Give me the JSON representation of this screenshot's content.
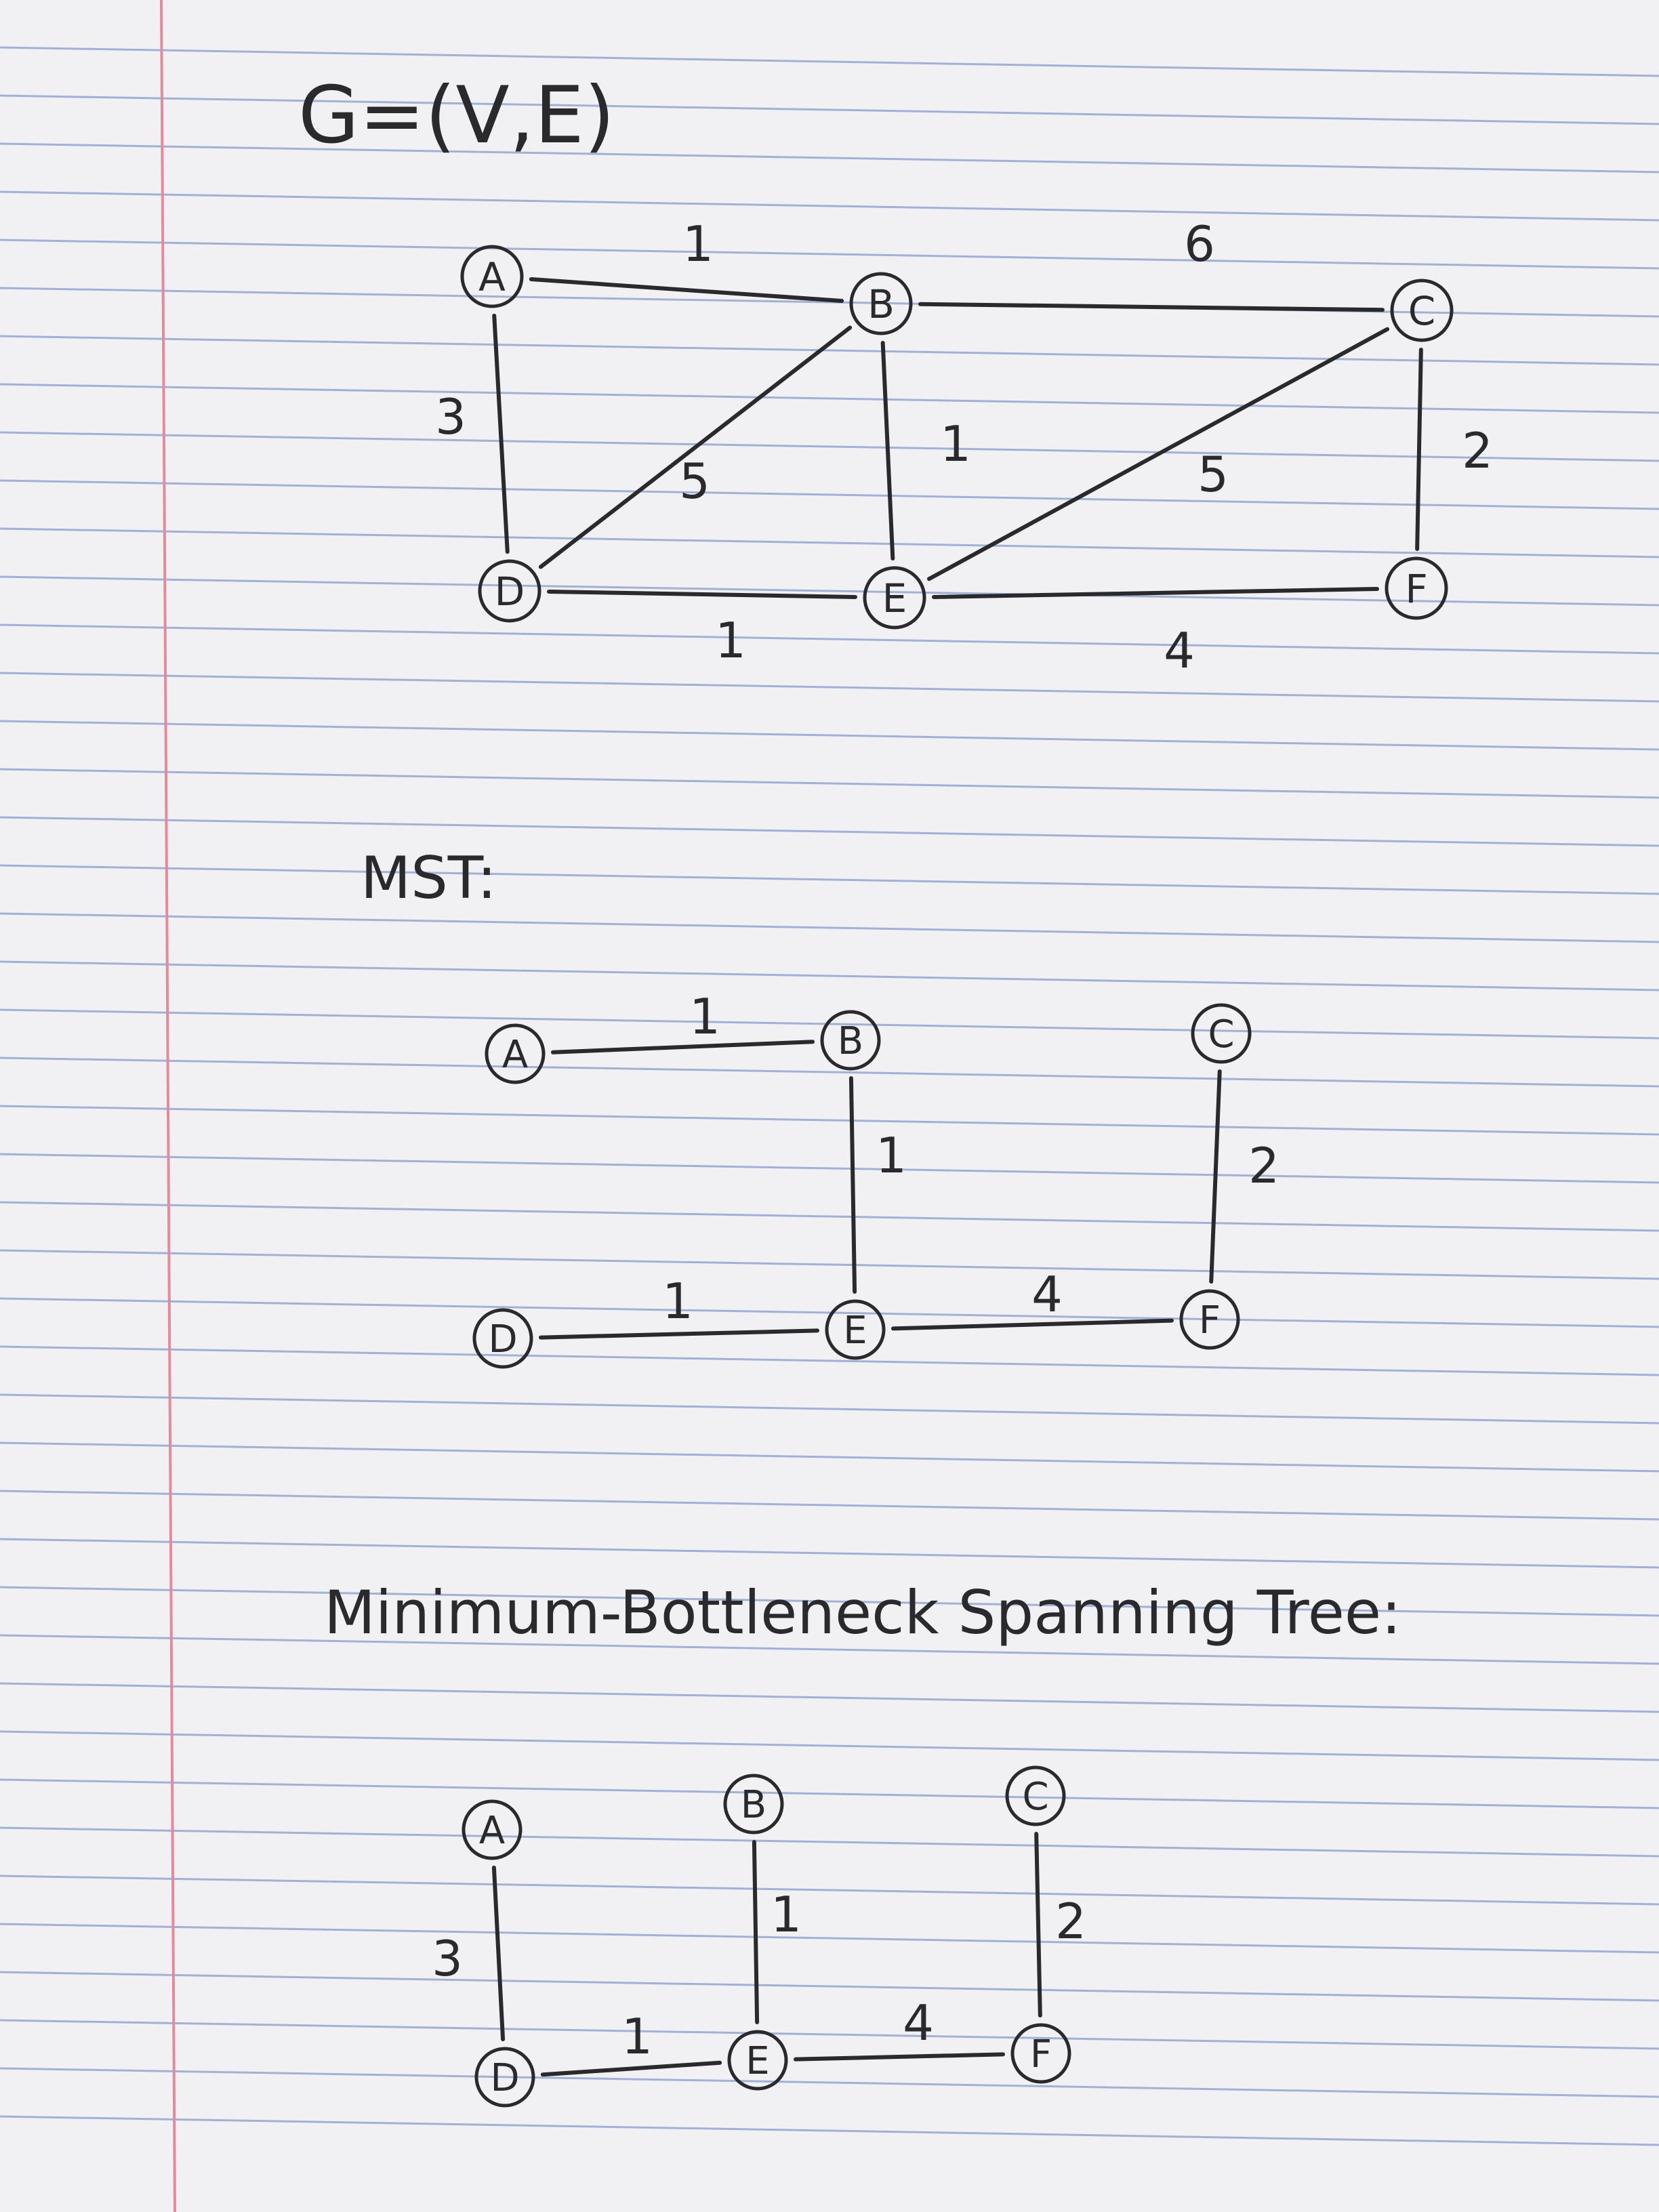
{
  "title": "G=(V,E)",
  "colors": {
    "paper": "#f1f1f3",
    "rule_line": "#9fb2d6",
    "margin_line": "#e38a9c",
    "ink": "#2a2a2e"
  },
  "graphs": [
    {
      "id": "g",
      "heading": "",
      "nodes": [
        {
          "id": "A",
          "label": "A"
        },
        {
          "id": "B",
          "label": "B"
        },
        {
          "id": "C",
          "label": "C"
        },
        {
          "id": "D",
          "label": "D"
        },
        {
          "id": "E",
          "label": "E"
        },
        {
          "id": "F",
          "label": "F"
        }
      ],
      "edges": [
        {
          "from": "A",
          "to": "B",
          "weight": "1"
        },
        {
          "from": "B",
          "to": "C",
          "weight": "6"
        },
        {
          "from": "A",
          "to": "D",
          "weight": "3"
        },
        {
          "from": "B",
          "to": "D",
          "weight": "5"
        },
        {
          "from": "B",
          "to": "E",
          "weight": "1"
        },
        {
          "from": "C",
          "to": "E",
          "weight": "5"
        },
        {
          "from": "C",
          "to": "F",
          "weight": "2"
        },
        {
          "from": "D",
          "to": "E",
          "weight": "1"
        },
        {
          "from": "E",
          "to": "F",
          "weight": "4"
        }
      ]
    },
    {
      "id": "mst",
      "heading": "MST:",
      "nodes": [
        {
          "id": "A",
          "label": "A"
        },
        {
          "id": "B",
          "label": "B"
        },
        {
          "id": "C",
          "label": "C"
        },
        {
          "id": "D",
          "label": "D"
        },
        {
          "id": "E",
          "label": "E"
        },
        {
          "id": "F",
          "label": "F"
        }
      ],
      "edges": [
        {
          "from": "A",
          "to": "B",
          "weight": "1"
        },
        {
          "from": "B",
          "to": "E",
          "weight": "1"
        },
        {
          "from": "C",
          "to": "F",
          "weight": "2"
        },
        {
          "from": "D",
          "to": "E",
          "weight": "1"
        },
        {
          "from": "E",
          "to": "F",
          "weight": "4"
        }
      ]
    },
    {
      "id": "mbst",
      "heading": "Minimum-Bottleneck Spanning Tree:",
      "nodes": [
        {
          "id": "A",
          "label": "A"
        },
        {
          "id": "B",
          "label": "B"
        },
        {
          "id": "C",
          "label": "C"
        },
        {
          "id": "D",
          "label": "D"
        },
        {
          "id": "E",
          "label": "E"
        },
        {
          "id": "F",
          "label": "F"
        }
      ],
      "edges": [
        {
          "from": "A",
          "to": "D",
          "weight": "3"
        },
        {
          "from": "B",
          "to": "E",
          "weight": "1"
        },
        {
          "from": "C",
          "to": "F",
          "weight": "2"
        },
        {
          "from": "D",
          "to": "E",
          "weight": "1"
        },
        {
          "from": "E",
          "to": "F",
          "weight": "4"
        }
      ]
    }
  ]
}
